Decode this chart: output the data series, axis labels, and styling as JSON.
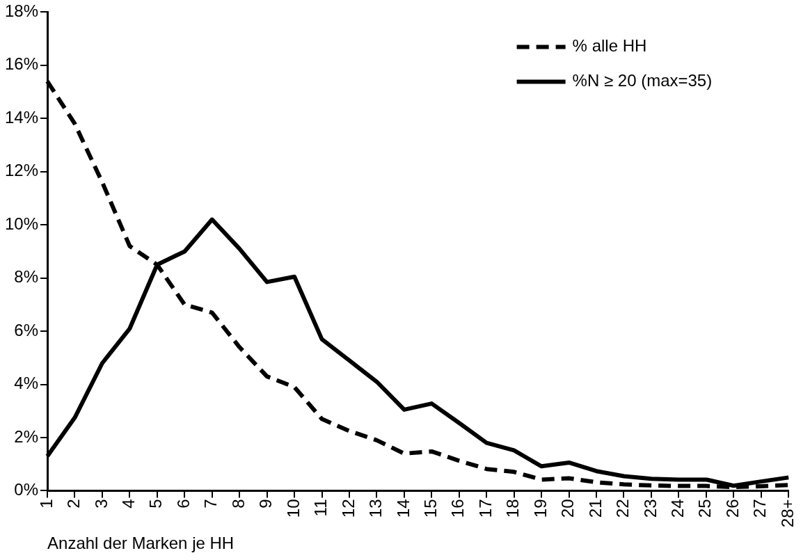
{
  "chart_data": {
    "type": "line",
    "xlabel": "Anzahl der Marken je HH",
    "categories": [
      "1",
      "2",
      "3",
      "4",
      "5",
      "6",
      "7",
      "8",
      "9",
      "10",
      "11",
      "12",
      "13",
      "14",
      "15",
      "16",
      "17",
      "18",
      "19",
      "20",
      "21",
      "22",
      "23",
      "24",
      "25",
      "26",
      "27",
      "28+"
    ],
    "series": [
      {
        "name": "% alle HH",
        "color": "#000000",
        "line_style": "dashed",
        "values": [
          15.4,
          13.8,
          11.6,
          9.2,
          8.5,
          7.0,
          6.7,
          5.4,
          4.3,
          3.9,
          2.7,
          2.25,
          1.9,
          1.4,
          1.48,
          1.13,
          0.82,
          0.71,
          0.42,
          0.47,
          0.32,
          0.24,
          0.2,
          0.18,
          0.18,
          0.14,
          0.17,
          0.22
        ]
      },
      {
        "name": "%N ≥ 20 (max=35)",
        "color": "#000000",
        "line_style": "solid",
        "values": [
          1.3,
          2.75,
          4.8,
          6.1,
          8.5,
          9.0,
          10.2,
          9.1,
          7.85,
          8.05,
          5.7,
          4.9,
          4.1,
          3.05,
          3.28,
          2.55,
          1.8,
          1.52,
          0.92,
          1.06,
          0.74,
          0.55,
          0.45,
          0.42,
          0.42,
          0.19,
          0.35,
          0.5
        ]
      }
    ],
    "ylim": [
      0,
      18
    ],
    "yticks": [
      {
        "value": 0,
        "label": "0%"
      },
      {
        "value": 2,
        "label": "2%"
      },
      {
        "value": 4,
        "label": "4%"
      },
      {
        "value": 6,
        "label": "6%"
      },
      {
        "value": 8,
        "label": "8%"
      },
      {
        "value": 10,
        "label": "10%"
      },
      {
        "value": 12,
        "label": "12%"
      },
      {
        "value": 14,
        "label": "14%"
      },
      {
        "value": 16,
        "label": "16%"
      },
      {
        "value": 18,
        "label": "18%"
      }
    ],
    "grid": false,
    "legend": "top right",
    "marker": "none"
  }
}
